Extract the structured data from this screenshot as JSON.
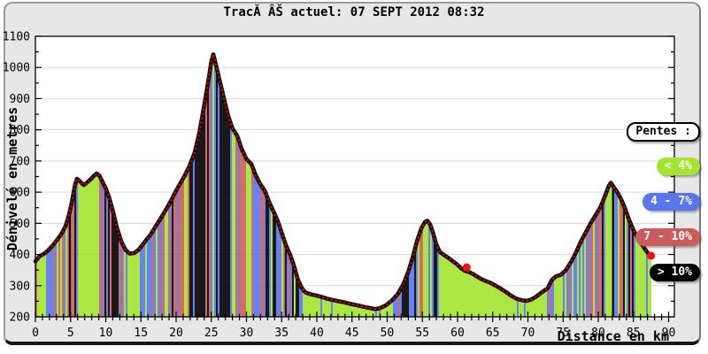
{
  "title": "TracĂ ÂŠ actuel: 07 SEPT 2012 08:32",
  "legend": {
    "title": "Pentes :",
    "items": [
      {
        "label": "< 4%",
        "color": "#a3e42e"
      },
      {
        "label": "4 - 7%",
        "color": "#5a74ee"
      },
      {
        "label": "7 - 10%",
        "color": "#cc5c5c"
      },
      {
        "label": "> 10%",
        "color": "#000000"
      }
    ]
  },
  "colors": {
    "background": "#e7e7e7",
    "plot_background": "#ffffff",
    "grid": "#d9d9d9",
    "frame": "#000000",
    "line": "#111111",
    "line_dots": "#e60000",
    "position_marker": "#ee1111",
    "tick_text": "#000000"
  },
  "chart_data": {
    "type": "area",
    "title": "TracĂ ÂŠ actuel: 07 SEPT 2012 08:32",
    "xlabel": "Distance en km",
    "ylabel": "Dénivelé en metres",
    "xlim": [
      0,
      90
    ],
    "ylim": [
      200,
      1100
    ],
    "x_ticks": [
      0,
      5,
      10,
      15,
      20,
      25,
      30,
      35,
      40,
      45,
      50,
      55,
      60,
      65,
      70,
      75,
      80,
      85,
      90
    ],
    "y_ticks": [
      200,
      300,
      400,
      500,
      600,
      700,
      800,
      900,
      1000,
      1100
    ],
    "x_minor_step": 1,
    "y_minor_step": 50,
    "grid": "horizontal",
    "legend_position": "right",
    "slope_classes": [
      {
        "label": "< 4%",
        "max": 4,
        "color": "#a3e42e"
      },
      {
        "label": "4 - 7%",
        "max": 7,
        "color": "#5a74ee"
      },
      {
        "label": "7 - 10%",
        "max": 10,
        "color": "#cc5c5c"
      },
      {
        "label": "> 10%",
        "max": 999,
        "color": "#000000"
      }
    ],
    "profile": [
      [
        0,
        378
      ],
      [
        0.6,
        395
      ],
      [
        1.2,
        402
      ],
      [
        1.8,
        413
      ],
      [
        2.5,
        430
      ],
      [
        3.2,
        450
      ],
      [
        3.8,
        470
      ],
      [
        4.3,
        492
      ],
      [
        4.8,
        530
      ],
      [
        5.2,
        570
      ],
      [
        5.6,
        620
      ],
      [
        5.9,
        643
      ],
      [
        6.2,
        638
      ],
      [
        6.6,
        628
      ],
      [
        6.9,
        623
      ],
      [
        7.3,
        630
      ],
      [
        7.8,
        640
      ],
      [
        8.3,
        652
      ],
      [
        8.7,
        660
      ],
      [
        9.1,
        653
      ],
      [
        9.6,
        630
      ],
      [
        10,
        612
      ],
      [
        10.5,
        581
      ],
      [
        11,
        540
      ],
      [
        11.6,
        485
      ],
      [
        12.2,
        442
      ],
      [
        12.8,
        415
      ],
      [
        13.4,
        403
      ],
      [
        14,
        404
      ],
      [
        14.6,
        414
      ],
      [
        15.2,
        430
      ],
      [
        15.8,
        448
      ],
      [
        16.4,
        465
      ],
      [
        17,
        487
      ],
      [
        17.7,
        512
      ],
      [
        18.4,
        538
      ],
      [
        19.1,
        565
      ],
      [
        19.8,
        596
      ],
      [
        20.5,
        625
      ],
      [
        21.2,
        652
      ],
      [
        21.9,
        684
      ],
      [
        22.6,
        725
      ],
      [
        23.3,
        790
      ],
      [
        24,
        880
      ],
      [
        24.6,
        960
      ],
      [
        25,
        1020
      ],
      [
        25.3,
        1042
      ],
      [
        25.7,
        1005
      ],
      [
        26.2,
        957
      ],
      [
        26.8,
        900
      ],
      [
        27.4,
        845
      ],
      [
        28,
        805
      ],
      [
        28.7,
        780
      ],
      [
        29.3,
        740
      ],
      [
        30,
        706
      ],
      [
        30.7,
        690
      ],
      [
        31.3,
        655
      ],
      [
        31.9,
        628
      ],
      [
        32.6,
        604
      ],
      [
        33.2,
        570
      ],
      [
        33.8,
        540
      ],
      [
        34.4,
        510
      ],
      [
        35,
        470
      ],
      [
        35.6,
        430
      ],
      [
        36.2,
        400
      ],
      [
        36.8,
        360
      ],
      [
        37.3,
        320
      ],
      [
        37.8,
        295
      ],
      [
        38.2,
        282
      ],
      [
        38.6,
        276
      ],
      [
        39.2,
        272
      ],
      [
        40,
        268
      ],
      [
        40.8,
        263
      ],
      [
        41.5,
        258
      ],
      [
        42.3,
        254
      ],
      [
        43.1,
        250
      ],
      [
        44,
        246
      ],
      [
        44.9,
        241
      ],
      [
        45.8,
        237
      ],
      [
        46.7,
        232
      ],
      [
        47.6,
        228
      ],
      [
        48.3,
        225
      ],
      [
        49,
        228
      ],
      [
        49.8,
        237
      ],
      [
        50.6,
        251
      ],
      [
        51.5,
        273
      ],
      [
        52.3,
        305
      ],
      [
        53,
        345
      ],
      [
        53.7,
        397
      ],
      [
        54.3,
        448
      ],
      [
        54.9,
        487
      ],
      [
        55.4,
        505
      ],
      [
        55.7,
        508
      ],
      [
        56.1,
        497
      ],
      [
        56.5,
        470
      ],
      [
        57,
        431
      ],
      [
        57.5,
        408
      ],
      [
        58.1,
        398
      ],
      [
        58.7,
        389
      ],
      [
        59.3,
        379
      ],
      [
        59.9,
        369
      ],
      [
        60.5,
        356
      ],
      [
        61.1,
        347
      ],
      [
        61.7,
        343
      ],
      [
        62.3,
        336
      ],
      [
        62.8,
        329
      ],
      [
        63.4,
        321
      ],
      [
        64,
        315
      ],
      [
        64.7,
        309
      ],
      [
        65.4,
        300
      ],
      [
        66.1,
        291
      ],
      [
        66.8,
        281
      ],
      [
        67.6,
        268
      ],
      [
        68.4,
        258
      ],
      [
        69.2,
        253
      ],
      [
        69.8,
        251
      ],
      [
        70.5,
        256
      ],
      [
        71.2,
        265
      ],
      [
        72,
        279
      ],
      [
        72.8,
        292
      ],
      [
        73.4,
        318
      ],
      [
        74,
        330
      ],
      [
        74.7,
        335
      ],
      [
        75.4,
        350
      ],
      [
        76.1,
        375
      ],
      [
        76.8,
        405
      ],
      [
        77.5,
        440
      ],
      [
        78.2,
        470
      ],
      [
        78.9,
        500
      ],
      [
        79.6,
        525
      ],
      [
        80.3,
        552
      ],
      [
        81,
        590
      ],
      [
        81.5,
        620
      ],
      [
        81.8,
        630
      ],
      [
        82.2,
        616
      ],
      [
        82.7,
        600
      ],
      [
        83.2,
        580
      ],
      [
        83.8,
        548
      ],
      [
        84.4,
        510
      ],
      [
        85,
        478
      ],
      [
        85.5,
        458
      ],
      [
        86,
        440
      ],
      [
        86.5,
        422
      ],
      [
        87,
        406
      ],
      [
        87.5,
        396
      ]
    ],
    "markers": [
      {
        "km": 61.3,
        "elev": 359
      },
      {
        "km": 87.5,
        "elev": 396
      }
    ],
    "steep_bars_km": [
      4.9,
      82.1
    ]
  }
}
